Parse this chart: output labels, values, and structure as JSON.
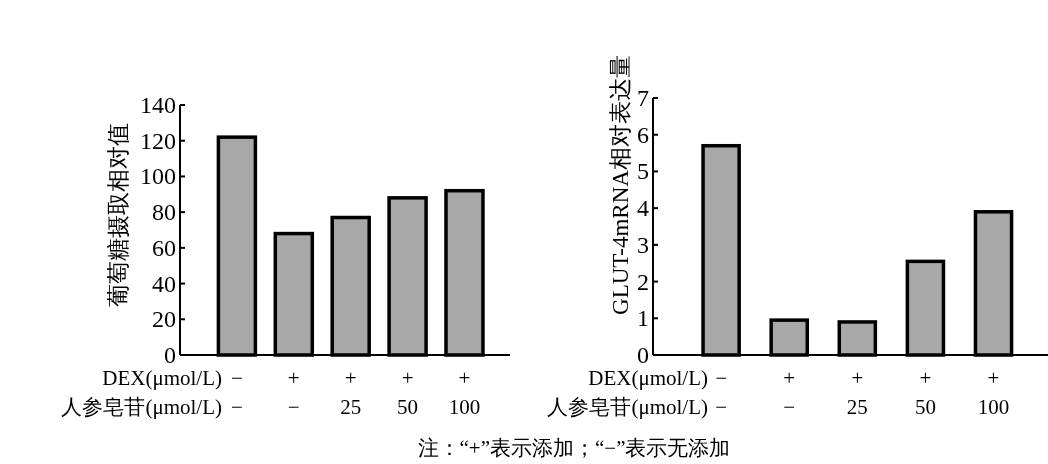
{
  "chart_data": [
    {
      "type": "bar",
      "ylabel": "葡萄糖摄取相对值",
      "xlabel": "DEX(μmol/L)\n人参皂苷(μmol/L)",
      "categories": [
        "−\n−",
        "+\n−",
        "+\n25",
        "+\n50",
        "+\n100"
      ],
      "values": [
        122,
        68,
        77,
        88,
        92
      ],
      "color": "#a8a8a8",
      "ylim": [
        0,
        140
      ],
      "yticks": [
        0,
        20,
        40,
        60,
        80,
        100,
        120,
        140
      ],
      "annotations": [
        "注：“+”表示添加；“−”表示无添加"
      ]
    },
    {
      "type": "bar",
      "ylabel": "GLUT-4mRNA相对表达量",
      "xlabel": "DEX(μmol/L)\n人参皂苷(μmol/L)",
      "categories": [
        "−\n−",
        "+\n−",
        "+\n25",
        "+\n50",
        "+\n100"
      ],
      "values": [
        5.7,
        0.95,
        0.9,
        2.55,
        3.9
      ],
      "color": "#a8a8a8",
      "ylim": [
        0,
        7
      ],
      "yticks": [
        0,
        1,
        2,
        3,
        4,
        5,
        6,
        7
      ]
    }
  ]
}
